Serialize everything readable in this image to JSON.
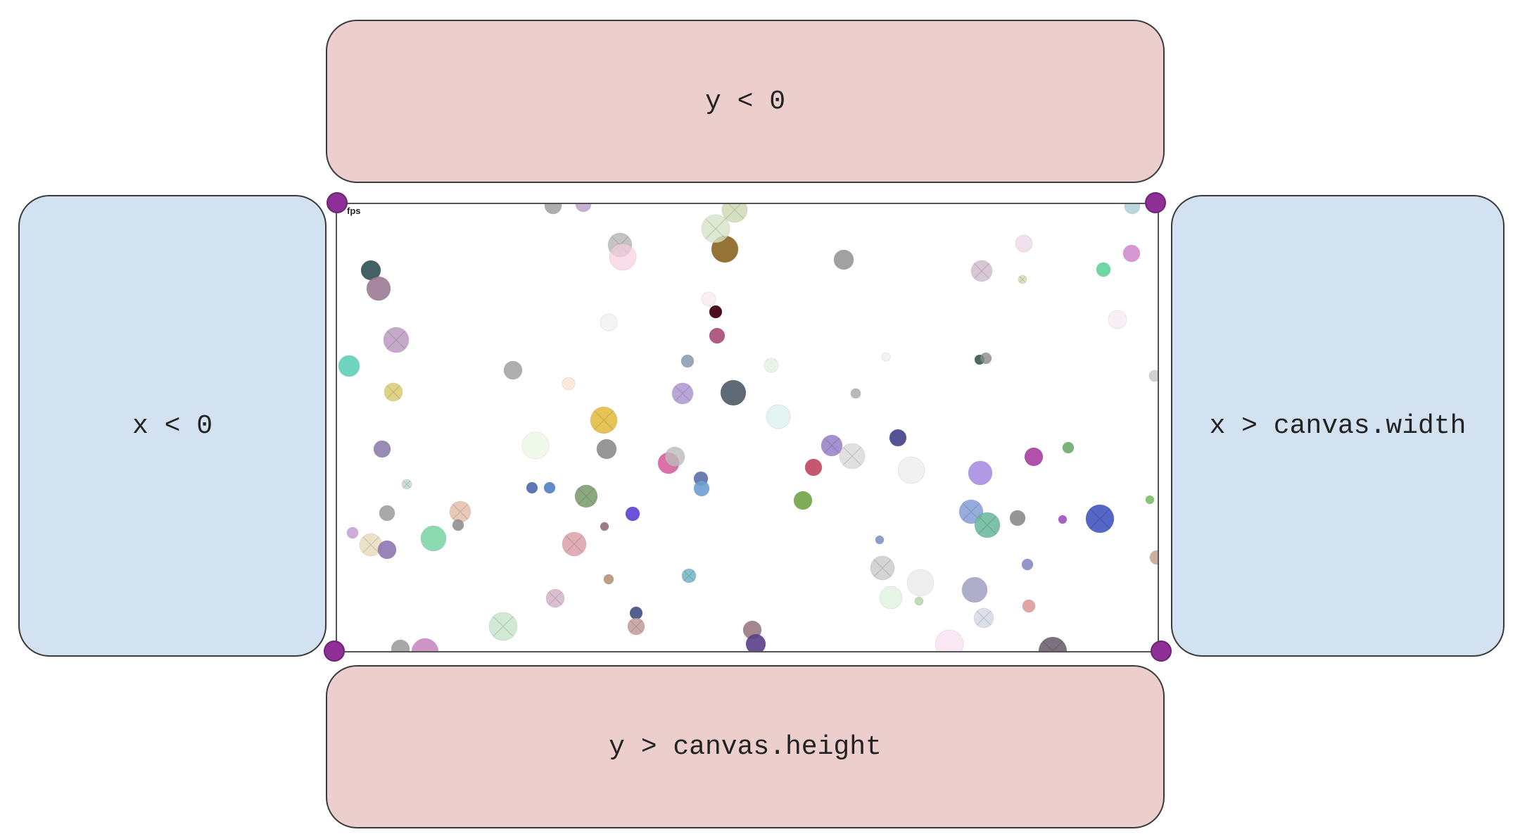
{
  "zones": {
    "top": "y < 0",
    "bottom": "y > canvas.height",
    "left": "x < 0",
    "right": "x > canvas.width"
  },
  "canvas": {
    "fps_label": "fps",
    "corner_color": "#8e2f97"
  }
}
